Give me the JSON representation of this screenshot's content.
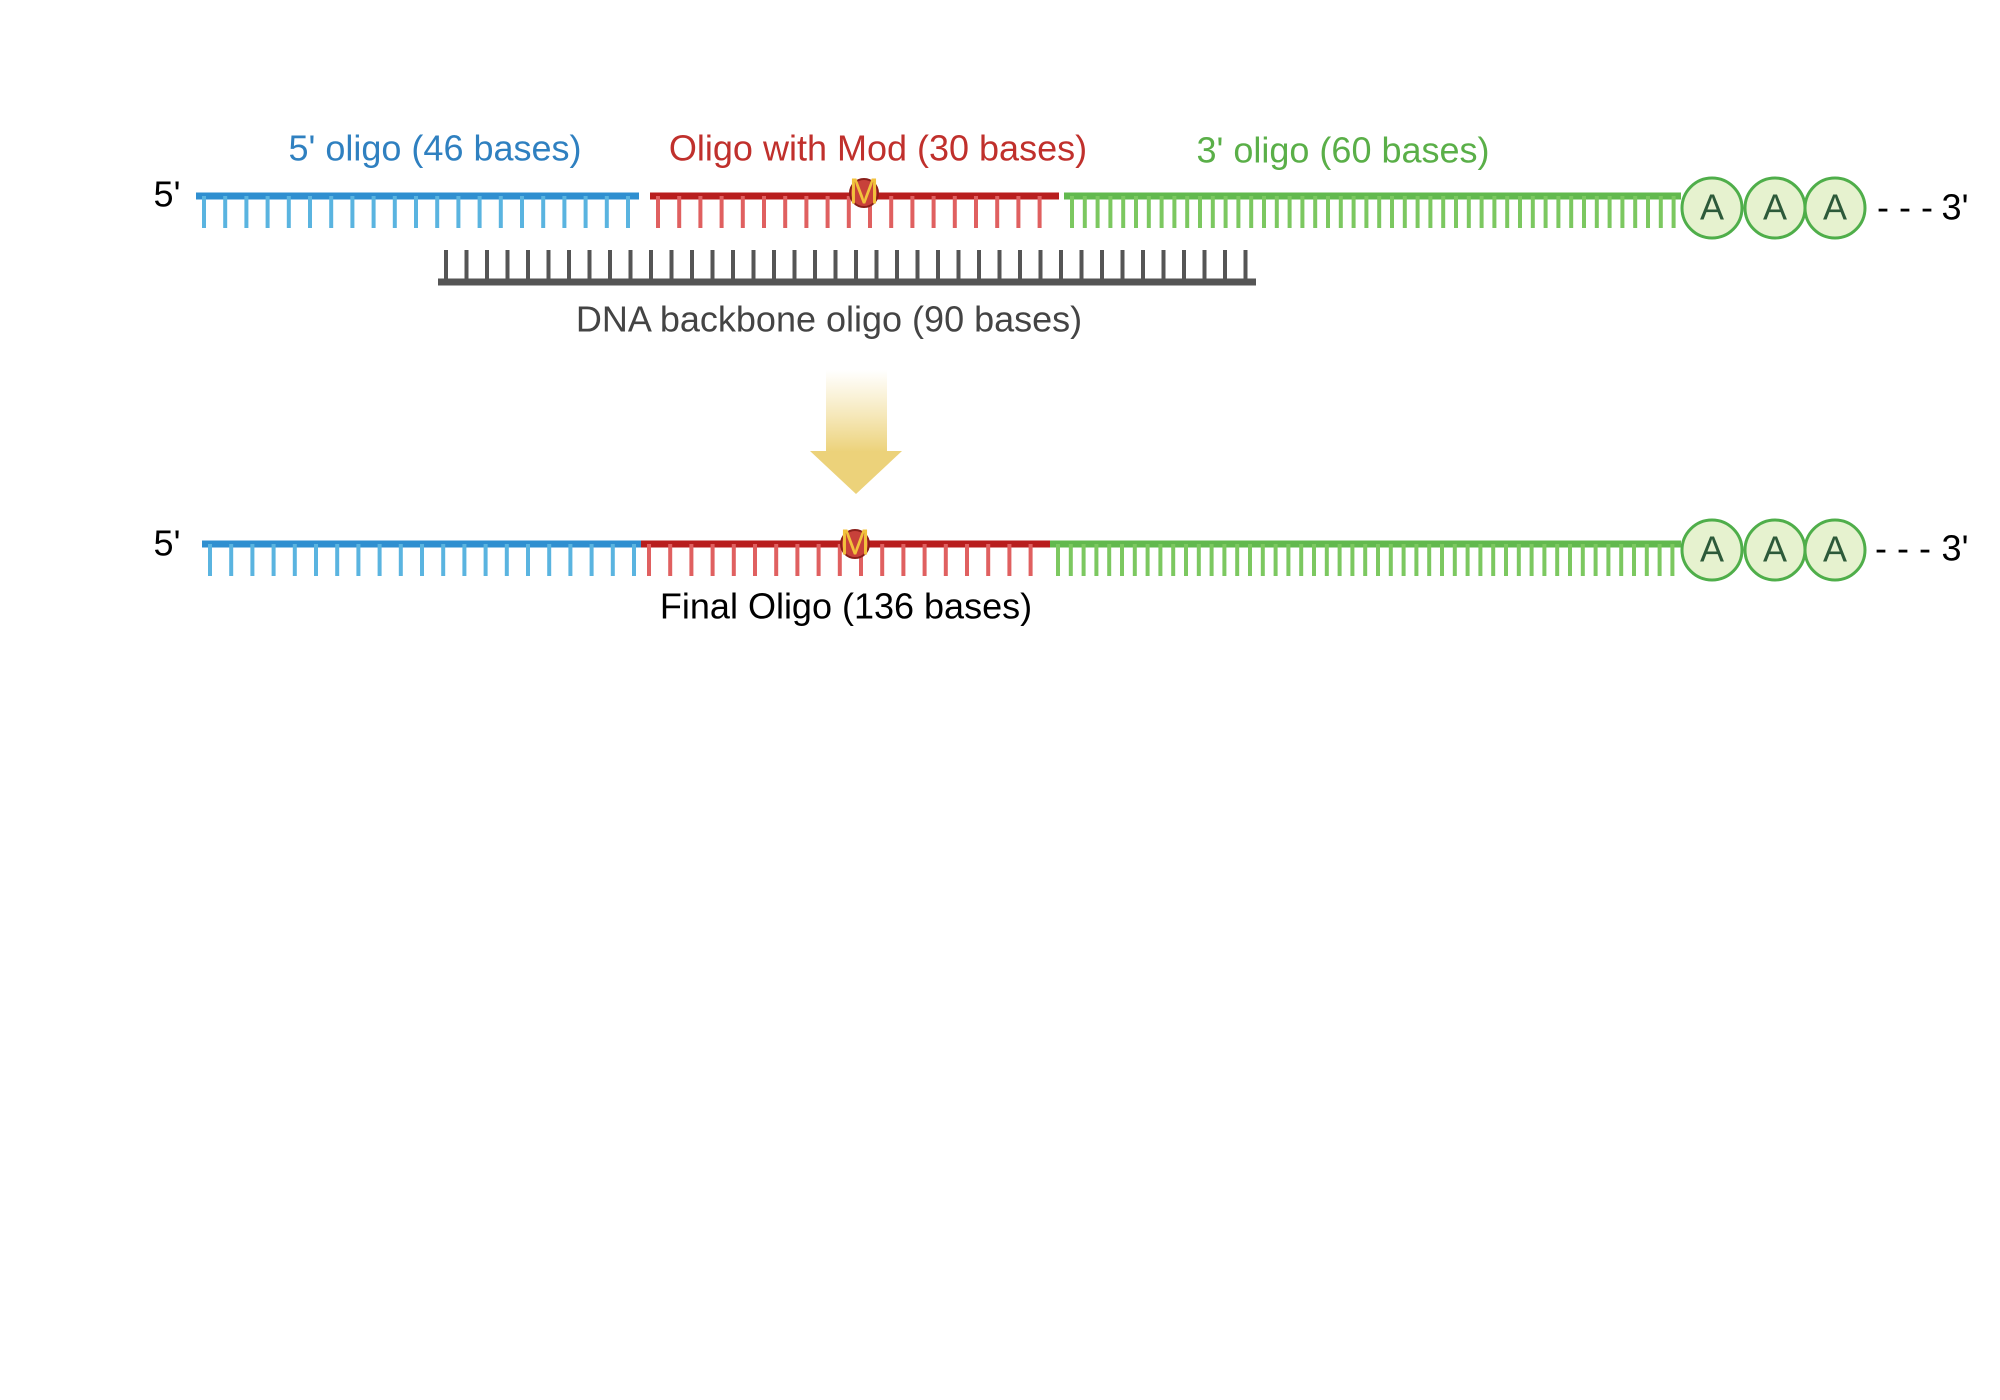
{
  "top_strand": {
    "five_prime": "5'",
    "segments": [
      {
        "label": "5' oligo (46 bases)"
      },
      {
        "label": "Oligo with Mod (30 bases)"
      },
      {
        "label": "3' oligo (60 bases)"
      }
    ],
    "mod": "M",
    "poly_a": [
      "A",
      "A",
      "A"
    ],
    "tail": "- - -",
    "three_prime": "3'"
  },
  "backbone": {
    "label": "DNA backbone oligo (90 bases)"
  },
  "final_strand": {
    "five_prime": "5'",
    "mod": "M",
    "poly_a": [
      "A",
      "A",
      "A"
    ],
    "tail": "- - -",
    "three_prime": "3'",
    "label": "Final Oligo (136 bases)"
  }
}
